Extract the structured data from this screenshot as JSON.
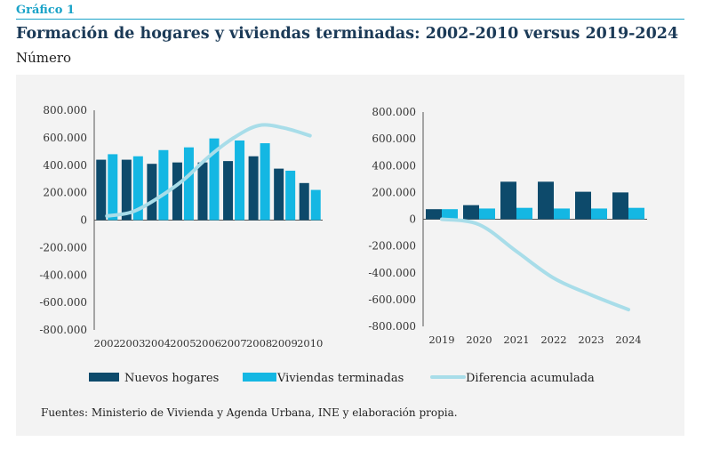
{
  "header": {
    "label": "Gráfico 1",
    "title": "Formación de hogares y viviendas terminadas: 2002-2010 versus 2019-2024",
    "subtitle": "Número"
  },
  "source": "Fuentes: Ministerio de Vivienda y Agenda Urbana, INE y elaboración propia.",
  "colors": {
    "nuevos": "#0d4a6b",
    "viviendas": "#14b7e3",
    "diferencia": "#a8dde9"
  },
  "legend": [
    {
      "key": "nuevos",
      "label": "Nuevos hogares"
    },
    {
      "key": "viviendas",
      "label": "Viviendas terminadas"
    },
    {
      "key": "diferencia",
      "label": "Diferencia acumulada"
    }
  ],
  "chart_data": [
    {
      "type": "bar",
      "categories": [
        "2002",
        "2003",
        "2004",
        "2005",
        "2006",
        "2007",
        "2008",
        "2009",
        "2010"
      ],
      "ylim": [
        -800000,
        800000
      ],
      "yticks": [
        "800.000",
        "600.000",
        "400.000",
        "200.000",
        "0",
        "-200.000",
        "-400.000",
        "-600.000",
        "-800.000"
      ],
      "series": [
        {
          "name": "Nuevos hogares",
          "type": "bar",
          "values": [
            440000,
            440000,
            410000,
            420000,
            420000,
            430000,
            465000,
            375000,
            270000
          ]
        },
        {
          "name": "Viviendas terminadas",
          "type": "bar",
          "values": [
            480000,
            465000,
            510000,
            530000,
            595000,
            580000,
            560000,
            360000,
            220000
          ]
        },
        {
          "name": "Diferencia acumulada",
          "type": "line",
          "values": [
            30000,
            60000,
            160000,
            290000,
            460000,
            600000,
            690000,
            670000,
            615000
          ]
        }
      ]
    },
    {
      "type": "bar",
      "categories": [
        "2019",
        "2020",
        "2021",
        "2022",
        "2023",
        "2024"
      ],
      "ylim": [
        -800000,
        800000
      ],
      "yticks": [
        "800.000",
        "600.000",
        "400.000",
        "200.000",
        "0",
        "-200.000",
        "-400.000",
        "-600.000",
        "-800.000"
      ],
      "series": [
        {
          "name": "Nuevos hogares",
          "type": "bar",
          "values": [
            75000,
            105000,
            280000,
            280000,
            205000,
            200000
          ]
        },
        {
          "name": "Viviendas terminadas",
          "type": "bar",
          "values": [
            75000,
            80000,
            85000,
            80000,
            80000,
            85000
          ]
        },
        {
          "name": "Diferencia acumulada",
          "type": "line",
          "values": [
            0,
            -40000,
            -240000,
            -440000,
            -565000,
            -675000
          ]
        }
      ]
    }
  ]
}
